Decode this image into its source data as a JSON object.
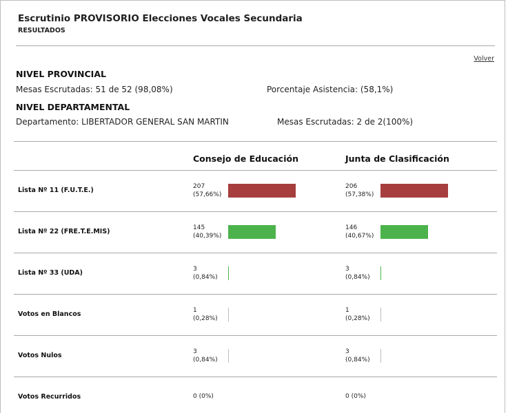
{
  "header": {
    "title": "Escrutinio PROVISORIO Elecciones Vocales Secundaria",
    "subtitle": "RESULTADOS",
    "back_link": "Volver"
  },
  "provincial": {
    "heading": "NIVEL PROVINCIAL",
    "mesas": "Mesas Escrutadas: 51 de 52 (98,08%)",
    "asistencia": "Porcentaje Asistencia: (58,1%)"
  },
  "departamental": {
    "heading": "NIVEL DEPARTAMENTAL",
    "departamento": "Departamento: LIBERTADOR GENERAL SAN MARTIN",
    "mesas": "Mesas Escrutadas: 2 de 2(100%)"
  },
  "columns": [
    "Consejo de Educación",
    "Junta de Clasificación"
  ],
  "colors": {
    "first": "#a63e3e",
    "second": "#4cb34c",
    "third": "#4cb34c",
    "other": "#bbbbbb"
  },
  "rows": [
    {
      "label": "Lista Nº 11 (F.U.T.E.)",
      "cells": [
        {
          "votes": "207",
          "pct": "(57,66%)",
          "share": 0.5766
        },
        {
          "votes": "206",
          "pct": "(57,38%)",
          "share": 0.5738
        }
      ]
    },
    {
      "label": "Lista Nº 22 (FRE.T.E.MIS)",
      "cells": [
        {
          "votes": "145",
          "pct": "(40,39%)",
          "share": 0.4039
        },
        {
          "votes": "146",
          "pct": "(40,67%)",
          "share": 0.4067
        }
      ]
    },
    {
      "label": "Lista Nº 33 (UDA)",
      "cells": [
        {
          "votes": "3",
          "pct": "(0,84%)",
          "share": 0.0084
        },
        {
          "votes": "3",
          "pct": "(0,84%)",
          "share": 0.0084
        }
      ]
    },
    {
      "label": "Votos en Blancos",
      "cells": [
        {
          "votes": "1",
          "pct": "(0,28%)",
          "share": 0.0028
        },
        {
          "votes": "1",
          "pct": "(0,28%)",
          "share": 0.0028
        }
      ]
    },
    {
      "label": "Votos Nulos",
      "cells": [
        {
          "votes": "3",
          "pct": "(0,84%)",
          "share": 0.0084
        },
        {
          "votes": "3",
          "pct": "(0,84%)",
          "share": 0.0084
        }
      ]
    },
    {
      "label": "Votos Recurridos",
      "cells": [
        {
          "single": "0 (0%)"
        },
        {
          "single": "0 (0%)"
        }
      ]
    }
  ]
}
